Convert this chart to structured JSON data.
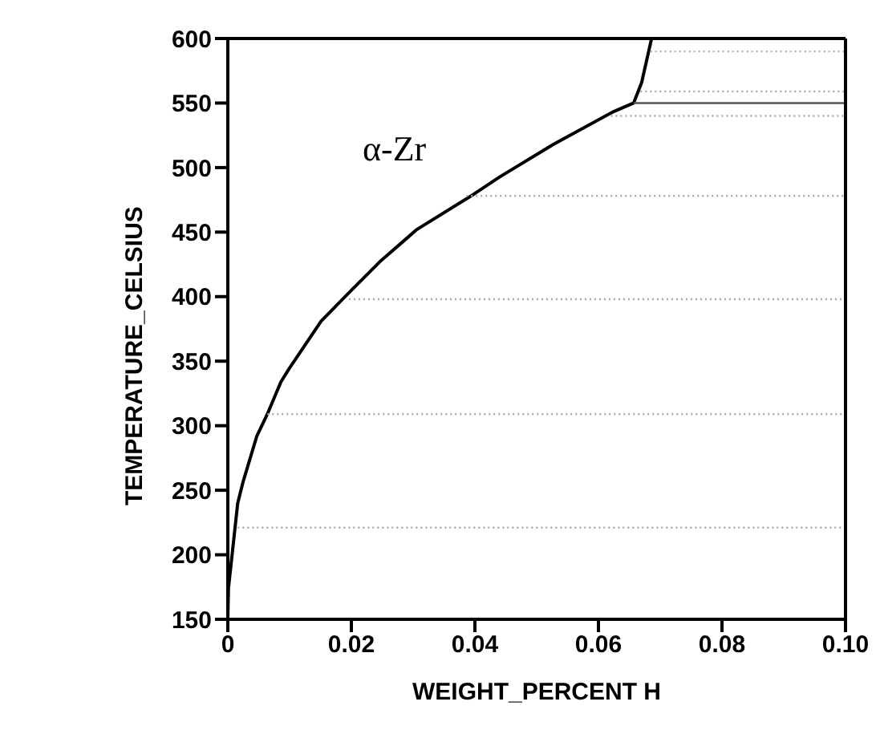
{
  "chart_data": {
    "type": "line",
    "xlabel": "WEIGHT_PERCENT H",
    "ylabel": "TEMPERATURE_CELSIUS",
    "annotations": [
      "α-Zr"
    ],
    "xlim": [
      0,
      0.1
    ],
    "ylim": [
      150,
      600
    ],
    "xticks": [
      0,
      0.02,
      0.04,
      0.06,
      0.08,
      {
        "value": 0.1,
        "label": "0.10"
      }
    ],
    "yticks": [
      150,
      200,
      250,
      300,
      350,
      400,
      450,
      500,
      550,
      600
    ],
    "series": [
      {
        "color": "#000000",
        "line_style": "solid",
        "x": [
          0,
          0.0001,
          0.0016,
          0.0025,
          0.0047,
          0.0064,
          0.0086,
          0.0099,
          0.0151,
          0.0198,
          0.0246,
          0.0306,
          0.0397,
          0.0441,
          0.0527,
          0.0623,
          0.0657,
          0.067,
          0.0686
        ],
        "values": [
          150,
          174,
          240,
          257,
          292,
          309,
          334,
          344,
          381,
          404,
          427,
          452,
          479,
          493,
          518,
          543,
          550,
          566,
          600
        ]
      },
      {
        "color": "#aaaaaa",
        "line_style": "dotted",
        "x": [
          0.0684,
          0.1
        ],
        "values": [
          590,
          590
        ]
      },
      {
        "color": "#aaaaaa",
        "line_style": "dotted",
        "x": [
          0.0668,
          0.1
        ],
        "values": [
          559,
          559
        ]
      },
      {
        "color": "#555555",
        "line_style": "solid",
        "x": [
          0.0657,
          0.1
        ],
        "values": [
          550,
          550
        ]
      },
      {
        "color": "#aaaaaa",
        "line_style": "dotted",
        "x": [
          0.062,
          0.1
        ],
        "values": [
          540,
          540
        ]
      },
      {
        "color": "#aaaaaa",
        "line_style": "dotted",
        "x": [
          0.0386,
          0.1
        ],
        "values": [
          478,
          478
        ]
      },
      {
        "color": "#aaaaaa",
        "line_style": "dotted",
        "x": [
          0.0196,
          0.1
        ],
        "values": [
          398,
          398
        ]
      },
      {
        "color": "#aaaaaa",
        "line_style": "dotted",
        "x": [
          0.0064,
          0.1
        ],
        "values": [
          309,
          309
        ]
      },
      {
        "color": "#aaaaaa",
        "line_style": "dotted",
        "x": [
          0.0016,
          0.1
        ],
        "values": [
          221,
          221
        ]
      }
    ]
  }
}
